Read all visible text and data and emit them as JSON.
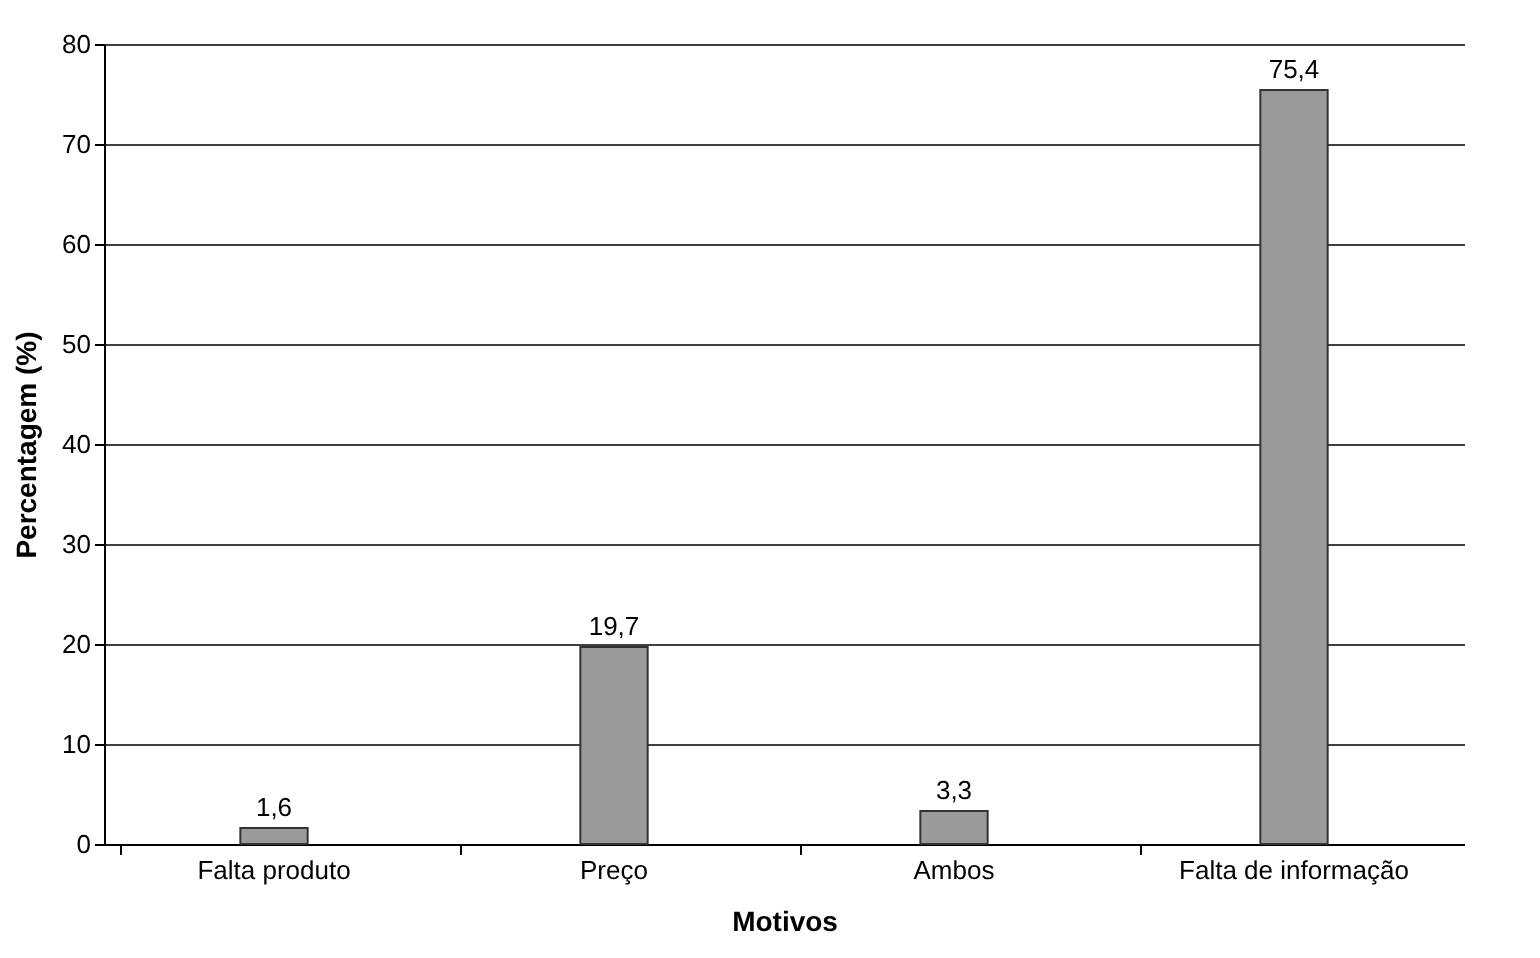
{
  "chart_data": {
    "type": "bar",
    "xlabel": "Motivos",
    "ylabel": "Percentagem (%)",
    "categories": [
      "Falta produto",
      "Preço",
      "Ambos",
      "Falta de informação"
    ],
    "values": [
      1.6,
      19.7,
      3.3,
      75.4
    ],
    "value_labels": [
      "1,6",
      "19,7",
      "3,3",
      "75,4"
    ],
    "color": "#9a9a9a",
    "ylim": [
      0,
      80
    ],
    "yticks": [
      0,
      10,
      20,
      30,
      40,
      50,
      60,
      70,
      80
    ],
    "grid": "y"
  }
}
